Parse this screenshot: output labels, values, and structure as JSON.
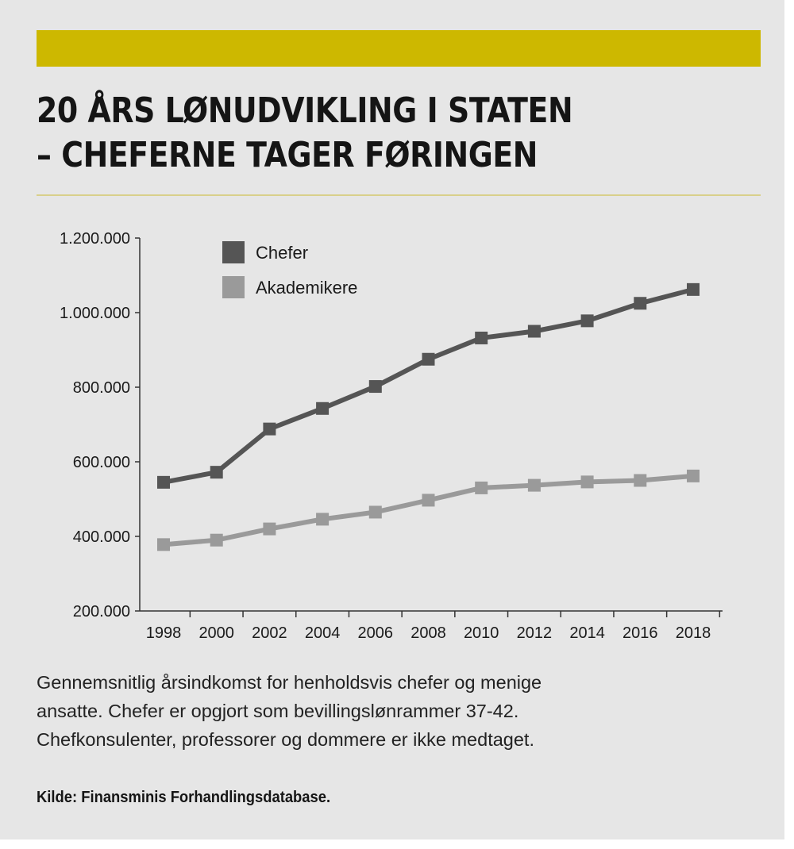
{
  "title": {
    "line1": "20 ÅRS LØNUDVIKLING I STATEN",
    "line2": "– CHEFERNE TAGER FØRINGEN"
  },
  "caption": {
    "line1": "Gennemsnitlig årsindkomst for henholdsvis chefer og menige",
    "line2": "ansatte. Chefer er opgjort som bevillingslønrammer 37-42.",
    "line3": "Chefkonsulenter, professorer og dommere er ikke medtaget."
  },
  "source": "Kilde: Finansminis  Forhandlingsdatabase.",
  "colors": {
    "band": "#cdb800",
    "background": "#e6e6e6",
    "chefer": "#555555",
    "akademikere": "#9a9a9a"
  },
  "chart_data": {
    "type": "line",
    "x": [
      "1998",
      "2000",
      "2002",
      "2004",
      "2006",
      "2008",
      "2010",
      "2012",
      "2014",
      "2016",
      "2018"
    ],
    "ylim": [
      200000,
      1200000
    ],
    "yticks": [
      {
        "value": 200000,
        "label": "200.000"
      },
      {
        "value": 400000,
        "label": "400.000"
      },
      {
        "value": 600000,
        "label": "600.000"
      },
      {
        "value": 800000,
        "label": "800.000"
      },
      {
        "value": 1000000,
        "label": "1.000.000"
      },
      {
        "value": 1200000,
        "label": "1.200.000"
      }
    ],
    "legend_position": "top-left",
    "grid": false,
    "series": [
      {
        "name": "Chefer",
        "color": "#555555",
        "values": [
          545000,
          572000,
          688000,
          743000,
          802000,
          875000,
          932000,
          950000,
          978000,
          1025000,
          1062000
        ]
      },
      {
        "name": "Akademikere",
        "color": "#9a9a9a",
        "values": [
          378000,
          390000,
          420000,
          446000,
          465000,
          497000,
          530000,
          537000,
          546000,
          550000,
          562000
        ]
      }
    ]
  }
}
